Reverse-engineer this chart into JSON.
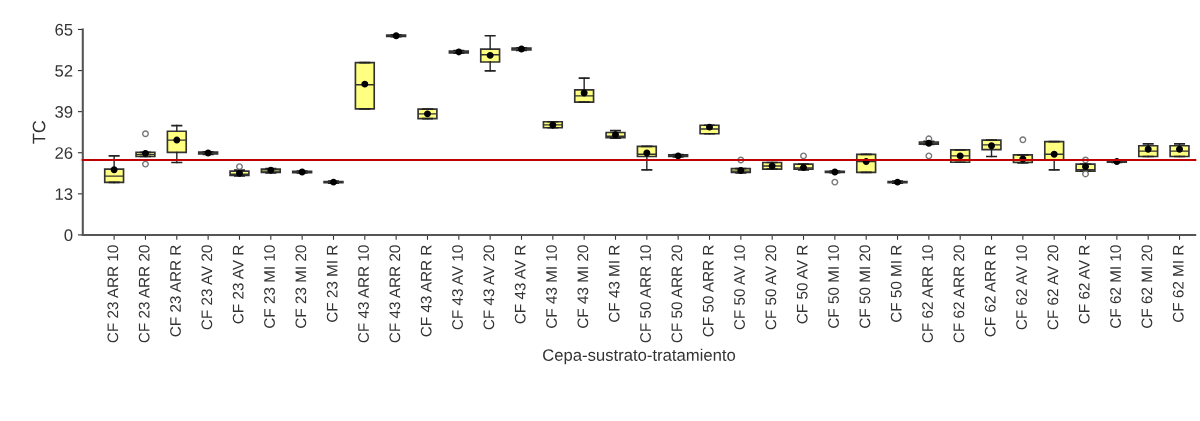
{
  "chart_data": {
    "type": "box",
    "xlabel": "Cepa-sustrato-tratamiento",
    "ylabel": "TC",
    "categories": [
      "CF 23 ARR 10",
      "CF 23 ARR 20",
      "CF 23 ARR R",
      "CF 23 AV 20",
      "CF 23 AV R",
      "CF 23 MI 10",
      "CF 23 MI 20",
      "CF 23 MI R",
      "CF 43 ARR 10",
      "CF 43 ARR 20",
      "CF 43 ARR R",
      "CF 43 AV 10",
      "CF 43 AV 20",
      "CF 43 AV R",
      "CF 43 MI 10",
      "CF 43 MI 20",
      "CF 43 MI R",
      "CF 50 ARR 10",
      "CF 50 ARR 20",
      "CF 50 ARR R",
      "CF 50 AV 10",
      "CF 50 AV 20",
      "CF 50 AV R",
      "CF 50 MI 10",
      "CF 50 MI 20",
      "CF 50 MI R",
      "CF 62 ARR 10",
      "CF 62 ARR 20",
      "CF 62 ARR R",
      "CF 62 AV 10",
      "CF 62 AV 20",
      "CF 62 AV R",
      "CF 62 MI 10",
      "CF 62 MI 20",
      "CF 62 MI R"
    ],
    "color": "#ffff80",
    "boxes": [
      {
        "low": 16.6,
        "q1": 16.6,
        "median": 18.6,
        "q3": 20.8,
        "high": 25.0,
        "mean": 20.6
      },
      {
        "low": 24.8,
        "q1": 24.8,
        "median": 25.4,
        "q3": 26.1,
        "high": 26.1,
        "mean": 25.8,
        "outliers": [
          32.0,
          22.4
        ]
      },
      {
        "low": 22.9,
        "q1": 26.1,
        "median": 30.0,
        "q3": 32.8,
        "high": 34.6,
        "mean": 30.0
      },
      {
        "low": 25.5,
        "q1": 25.6,
        "median": 25.9,
        "q3": 26.2,
        "high": 26.3,
        "mean": 25.9
      },
      {
        "low": 18.7,
        "q1": 18.8,
        "median": 19.2,
        "q3": 20.2,
        "high": 20.5,
        "mean": 19.5,
        "outliers": [
          21.6
        ]
      },
      {
        "low": 19.6,
        "q1": 19.8,
        "median": 20.2,
        "q3": 20.8,
        "high": 21.0,
        "mean": 20.5
      },
      {
        "low": 19.6,
        "q1": 19.7,
        "median": 19.9,
        "q3": 20.1,
        "high": 20.2,
        "mean": 19.9
      },
      {
        "low": 16.4,
        "q1": 16.5,
        "median": 16.7,
        "q3": 16.9,
        "high": 17.0,
        "mean": 16.7
      },
      {
        "low": 39.9,
        "q1": 39.9,
        "median": 47.5,
        "q3": 54.5,
        "high": 54.5,
        "mean": 47.7
      },
      {
        "low": 62.7,
        "q1": 62.8,
        "median": 63.0,
        "q3": 63.2,
        "high": 63.3,
        "mean": 63.0
      },
      {
        "low": 36.8,
        "q1": 36.8,
        "median": 38.3,
        "q3": 39.8,
        "high": 39.8,
        "mean": 38.3
      },
      {
        "low": 57.5,
        "q1": 57.6,
        "median": 57.9,
        "q3": 58.2,
        "high": 58.3,
        "mean": 57.9
      },
      {
        "low": 51.9,
        "q1": 54.7,
        "median": 57.0,
        "q3": 58.8,
        "high": 63.0,
        "mean": 56.8
      },
      {
        "low": 58.4,
        "q1": 58.5,
        "median": 58.8,
        "q3": 59.1,
        "high": 59.2,
        "mean": 58.8
      },
      {
        "low": 33.9,
        "q1": 33.9,
        "median": 34.8,
        "q3": 35.8,
        "high": 35.8,
        "mean": 34.8
      },
      {
        "low": 42.0,
        "q1": 42.0,
        "median": 44.0,
        "q3": 45.9,
        "high": 49.6,
        "mean": 44.9
      },
      {
        "low": 30.6,
        "q1": 30.8,
        "median": 31.2,
        "q3": 32.4,
        "high": 33.0,
        "mean": 31.7
      },
      {
        "low": 20.6,
        "q1": 24.8,
        "median": 25.5,
        "q3": 28.0,
        "high": 28.0,
        "mean": 25.9
      },
      {
        "low": 24.7,
        "q1": 24.8,
        "median": 25.0,
        "q3": 25.3,
        "high": 25.4,
        "mean": 25.0
      },
      {
        "low": 32.0,
        "q1": 32.0,
        "median": 33.5,
        "q3": 34.7,
        "high": 34.7,
        "mean": 34.1
      },
      {
        "low": 19.6,
        "q1": 19.8,
        "median": 20.2,
        "q3": 21.0,
        "high": 21.0,
        "mean": 20.4,
        "outliers": [
          23.7
        ]
      },
      {
        "low": 20.8,
        "q1": 20.8,
        "median": 21.8,
        "q3": 22.9,
        "high": 22.9,
        "mean": 21.8
      },
      {
        "low": 20.6,
        "q1": 20.8,
        "median": 21.2,
        "q3": 22.4,
        "high": 22.4,
        "mean": 21.3,
        "outliers": [
          25.0
        ]
      },
      {
        "low": 19.7,
        "q1": 19.8,
        "median": 19.9,
        "q3": 20.1,
        "high": 20.2,
        "mean": 19.9,
        "outliers": [
          16.7
        ]
      },
      {
        "low": 19.8,
        "q1": 19.8,
        "median": 23.2,
        "q3": 25.5,
        "high": 25.5,
        "mean": 23.2
      },
      {
        "low": 16.4,
        "q1": 16.5,
        "median": 16.7,
        "q3": 16.9,
        "high": 17.0,
        "mean": 16.7
      },
      {
        "low": 28.6,
        "q1": 28.7,
        "median": 29.0,
        "q3": 29.4,
        "high": 29.6,
        "mean": 29.0,
        "outliers": [
          30.4,
          25.0
        ]
      },
      {
        "low": 23.0,
        "q1": 23.0,
        "median": 25.0,
        "q3": 26.9,
        "high": 26.9,
        "mean": 25.0
      },
      {
        "low": 24.8,
        "q1": 27.0,
        "median": 28.5,
        "q3": 30.0,
        "high": 30.0,
        "mean": 28.2
      },
      {
        "low": 22.8,
        "q1": 22.9,
        "median": 23.5,
        "q3": 25.3,
        "high": 25.3,
        "mean": 24.0,
        "outliers": [
          30.1
        ]
      },
      {
        "low": 20.6,
        "q1": 23.7,
        "median": 25.5,
        "q3": 29.5,
        "high": 29.5,
        "mean": 25.5
      },
      {
        "low": 20.2,
        "q1": 20.2,
        "median": 20.6,
        "q3": 22.4,
        "high": 22.4,
        "mean": 21.6,
        "outliers": [
          23.7,
          19.3
        ]
      },
      {
        "low": 22.9,
        "q1": 23.0,
        "median": 23.2,
        "q3": 23.4,
        "high": 23.5,
        "mean": 23.2
      },
      {
        "low": 24.8,
        "q1": 24.8,
        "median": 26.5,
        "q3": 28.2,
        "high": 28.8,
        "mean": 27.1
      },
      {
        "low": 24.8,
        "q1": 24.8,
        "median": 26.5,
        "q3": 28.2,
        "high": 28.8,
        "mean": 27.1
      }
    ],
    "ylim": [
      0,
      65
    ],
    "yticks": [
      0,
      13,
      26,
      39,
      52,
      65
    ],
    "ref_lines": [
      {
        "axis": "y",
        "value": 23.7,
        "color": "#c00000"
      }
    ],
    "grid": false,
    "legend": false
  }
}
